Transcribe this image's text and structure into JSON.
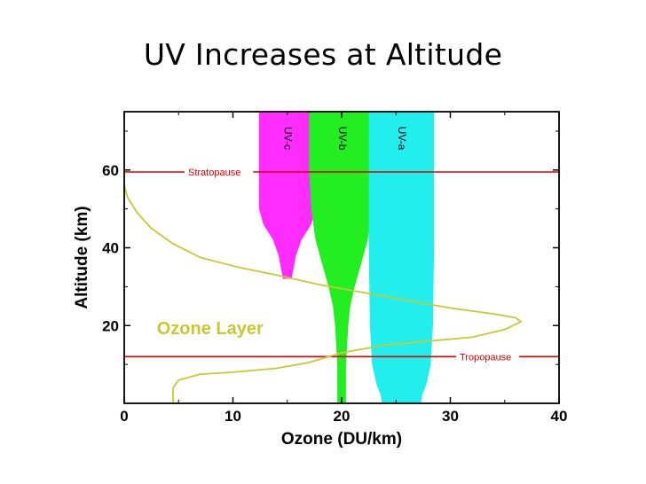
{
  "slide": {
    "title": "UV Increases at Altitude"
  },
  "chart_data": {
    "type": "line",
    "xlabel": "Ozone (DU/km)",
    "ylabel": "Altitude (km)",
    "xlim": [
      0,
      40
    ],
    "ylim": [
      0,
      75
    ],
    "xticks": [
      0,
      10,
      20,
      30,
      40
    ],
    "yticks": [
      20,
      40,
      60
    ],
    "grid": false,
    "series": [
      {
        "name": "Ozone Layer",
        "color": "#c8c832",
        "x": [
          4.5,
          4.5,
          5.0,
          7.0,
          10.0,
          14.0,
          17.0,
          20.0,
          24.0,
          28.0,
          32.0,
          35.0,
          36.5,
          36.0,
          34.0,
          30.0,
          26.0,
          22.0,
          18.0,
          14.0,
          10.5,
          7.0,
          4.5,
          2.5,
          1.2,
          0.3,
          0.0
        ],
        "y": [
          0,
          4,
          6,
          7.5,
          8,
          9,
          10.5,
          13,
          15,
          16,
          17,
          19,
          21,
          22,
          23,
          24.5,
          26.5,
          28.5,
          30.5,
          33,
          35,
          37.5,
          41,
          45,
          49,
          53,
          56
        ]
      }
    ],
    "reference_lines": [
      {
        "label": "Stratopause",
        "y": 59.5,
        "color": "#e00000"
      },
      {
        "label": "Tropopause",
        "y": 12,
        "color": "#e00000"
      }
    ],
    "bands": [
      {
        "label": "UV-c",
        "color": "#ff2cff",
        "center": 15,
        "profile": [
          [
            75,
            2.6
          ],
          [
            50,
            2.6
          ],
          [
            46,
            2.2
          ],
          [
            42,
            1.3
          ],
          [
            38,
            0.8
          ],
          [
            35,
            0.6
          ],
          [
            32,
            0.4
          ]
        ]
      },
      {
        "label": "UV-b",
        "color": "#22ee22",
        "center": 20,
        "profile": [
          [
            75,
            3.0
          ],
          [
            60,
            3.0
          ],
          [
            50,
            2.8
          ],
          [
            42,
            2.4
          ],
          [
            36,
            1.8
          ],
          [
            30,
            1.2
          ],
          [
            25,
            0.8
          ],
          [
            20,
            0.6
          ],
          [
            10,
            0.4
          ],
          [
            0,
            0.4
          ]
        ]
      },
      {
        "label": "UV-a",
        "color": "#22eeee",
        "center": 25.5,
        "profile": [
          [
            75,
            3.0
          ],
          [
            40,
            3.0
          ],
          [
            20,
            2.9
          ],
          [
            10,
            2.7
          ],
          [
            5,
            2.3
          ],
          [
            2,
            1.9
          ],
          [
            0,
            1.8
          ]
        ]
      }
    ]
  }
}
